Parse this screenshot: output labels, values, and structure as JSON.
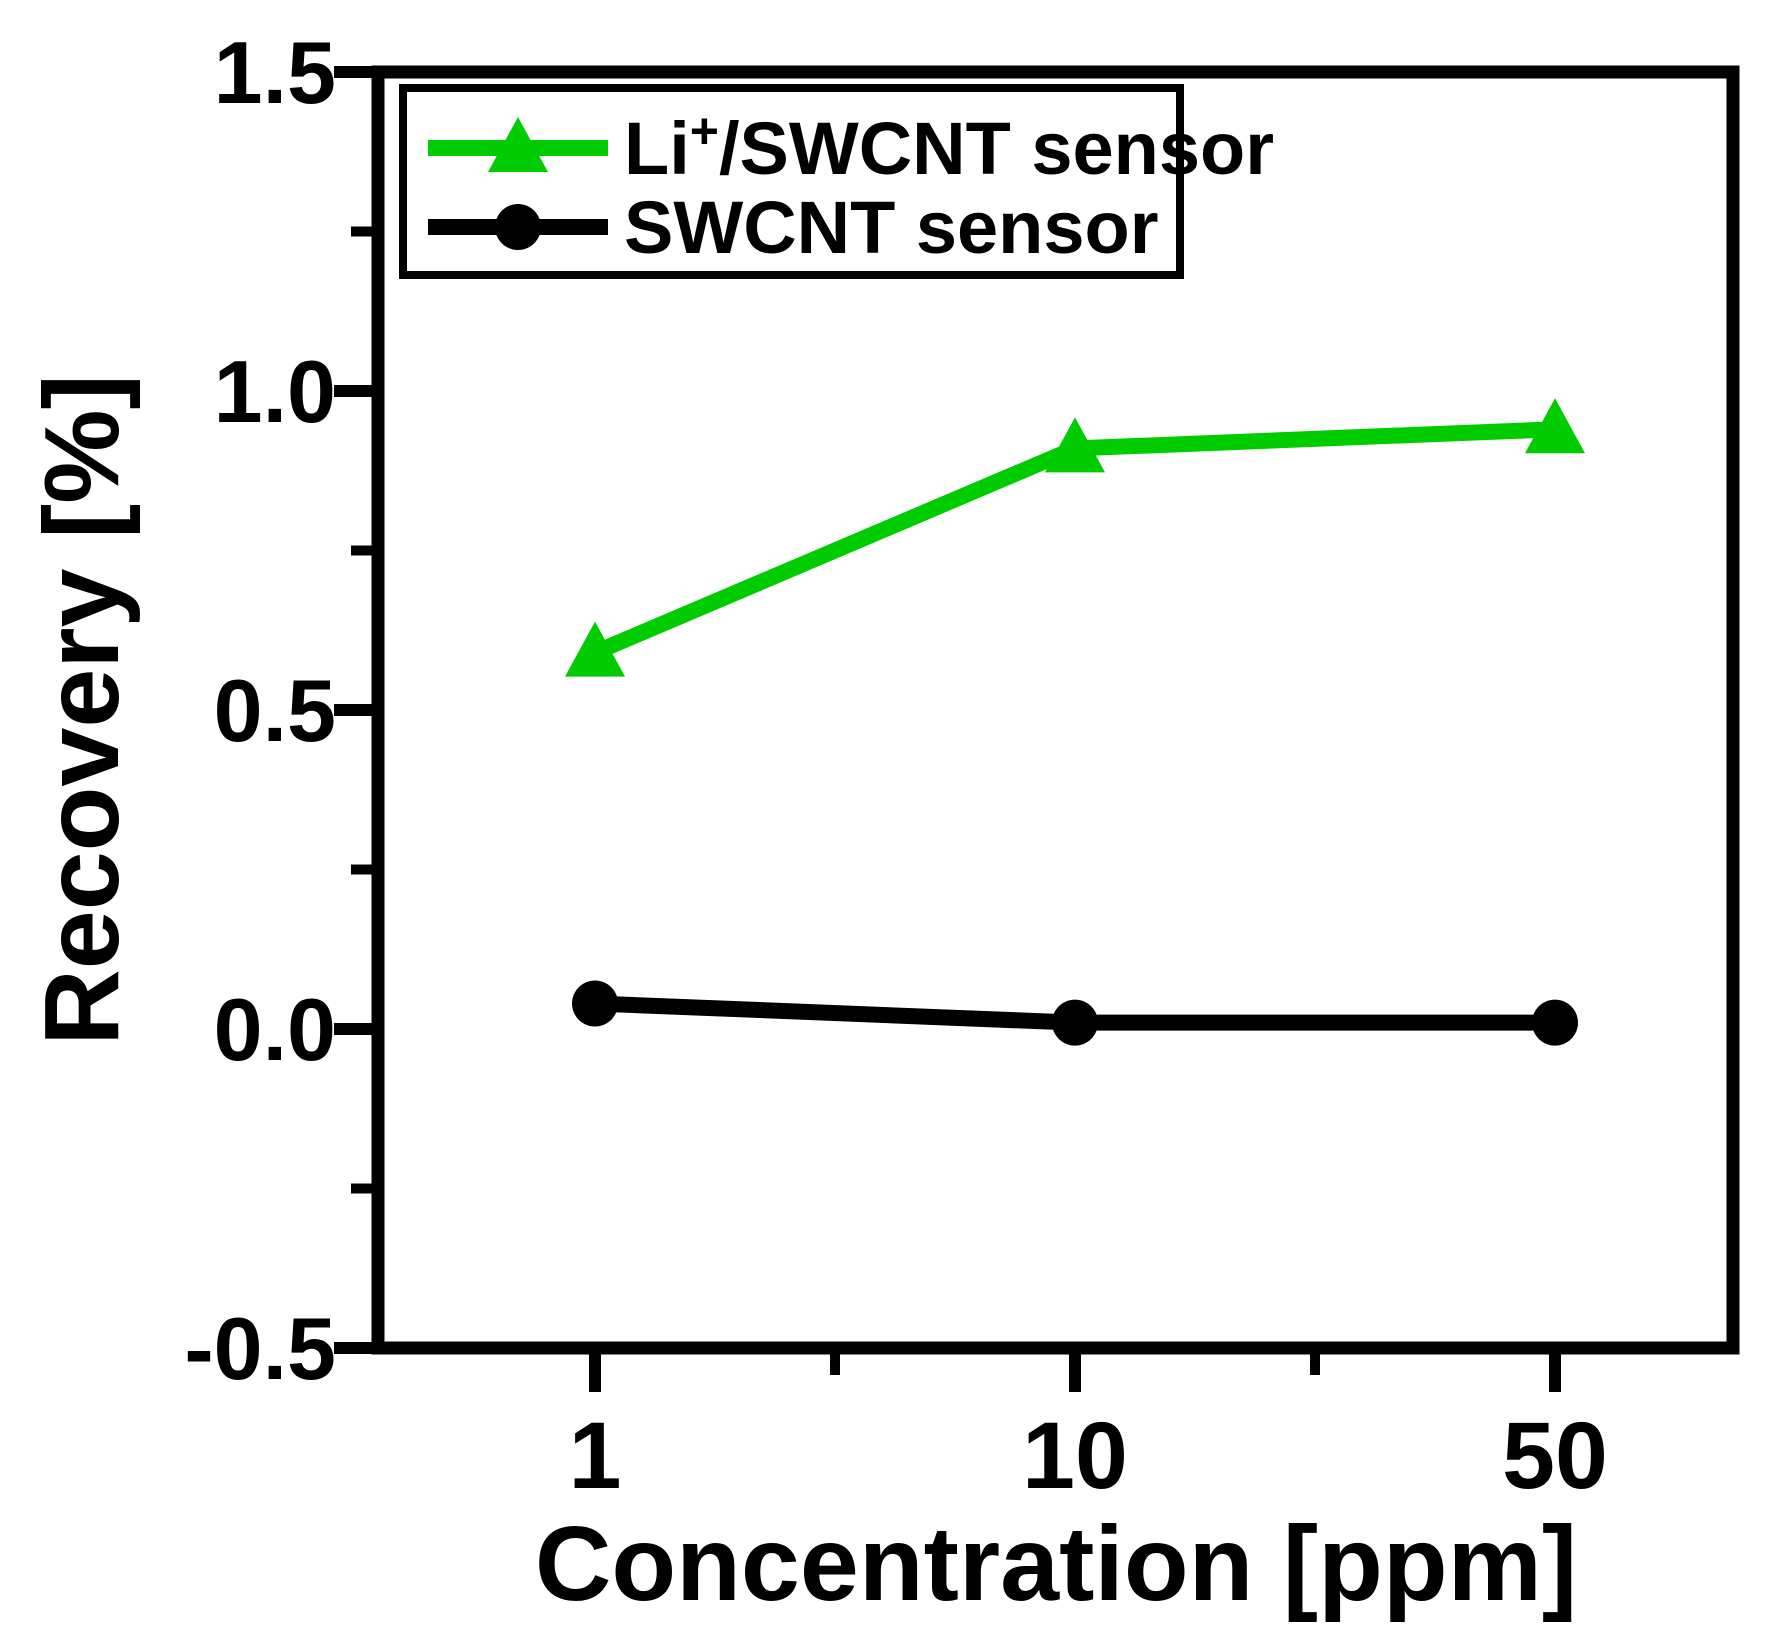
{
  "figure": {
    "background_color": "#ffffff",
    "axis_color": "#000000",
    "text_color": "#000000"
  },
  "chart_data": {
    "type": "line",
    "title": "",
    "xlabel": "Concentration [ppm]",
    "ylabel": "Recovery [%]",
    "x_scale": "categorical-evenly-spaced",
    "x_categories": [
      "1",
      "10",
      "50"
    ],
    "x_values_ppm": [
      1,
      10,
      50
    ],
    "ylim": [
      -0.5,
      1.5
    ],
    "ytick_values": [
      1.5,
      1.0,
      0.5,
      0.0,
      -0.5
    ],
    "ytick_labels": [
      "1.5",
      "1.0",
      "0.5",
      "0.0",
      "-0.5"
    ],
    "y_minor_tick_values": [
      1.25,
      0.75,
      0.25,
      -0.25
    ],
    "grid": false,
    "plot_border": "box",
    "legend_position": "top-left-inside",
    "series": [
      {
        "name": "Li+/SWCNT sensor",
        "label_parts": {
          "pre": "Li",
          "sup": "+",
          "post": "/SWCNT sensor"
        },
        "color": "#00CC00",
        "marker": "triangle",
        "values": [
          0.59,
          0.91,
          0.94
        ]
      },
      {
        "name": "SWCNT sensor",
        "label_parts": {
          "pre": "SWCNT sensor",
          "sup": "",
          "post": ""
        },
        "color": "#000000",
        "marker": "circle",
        "values": [
          0.04,
          0.01,
          0.01
        ]
      }
    ]
  }
}
